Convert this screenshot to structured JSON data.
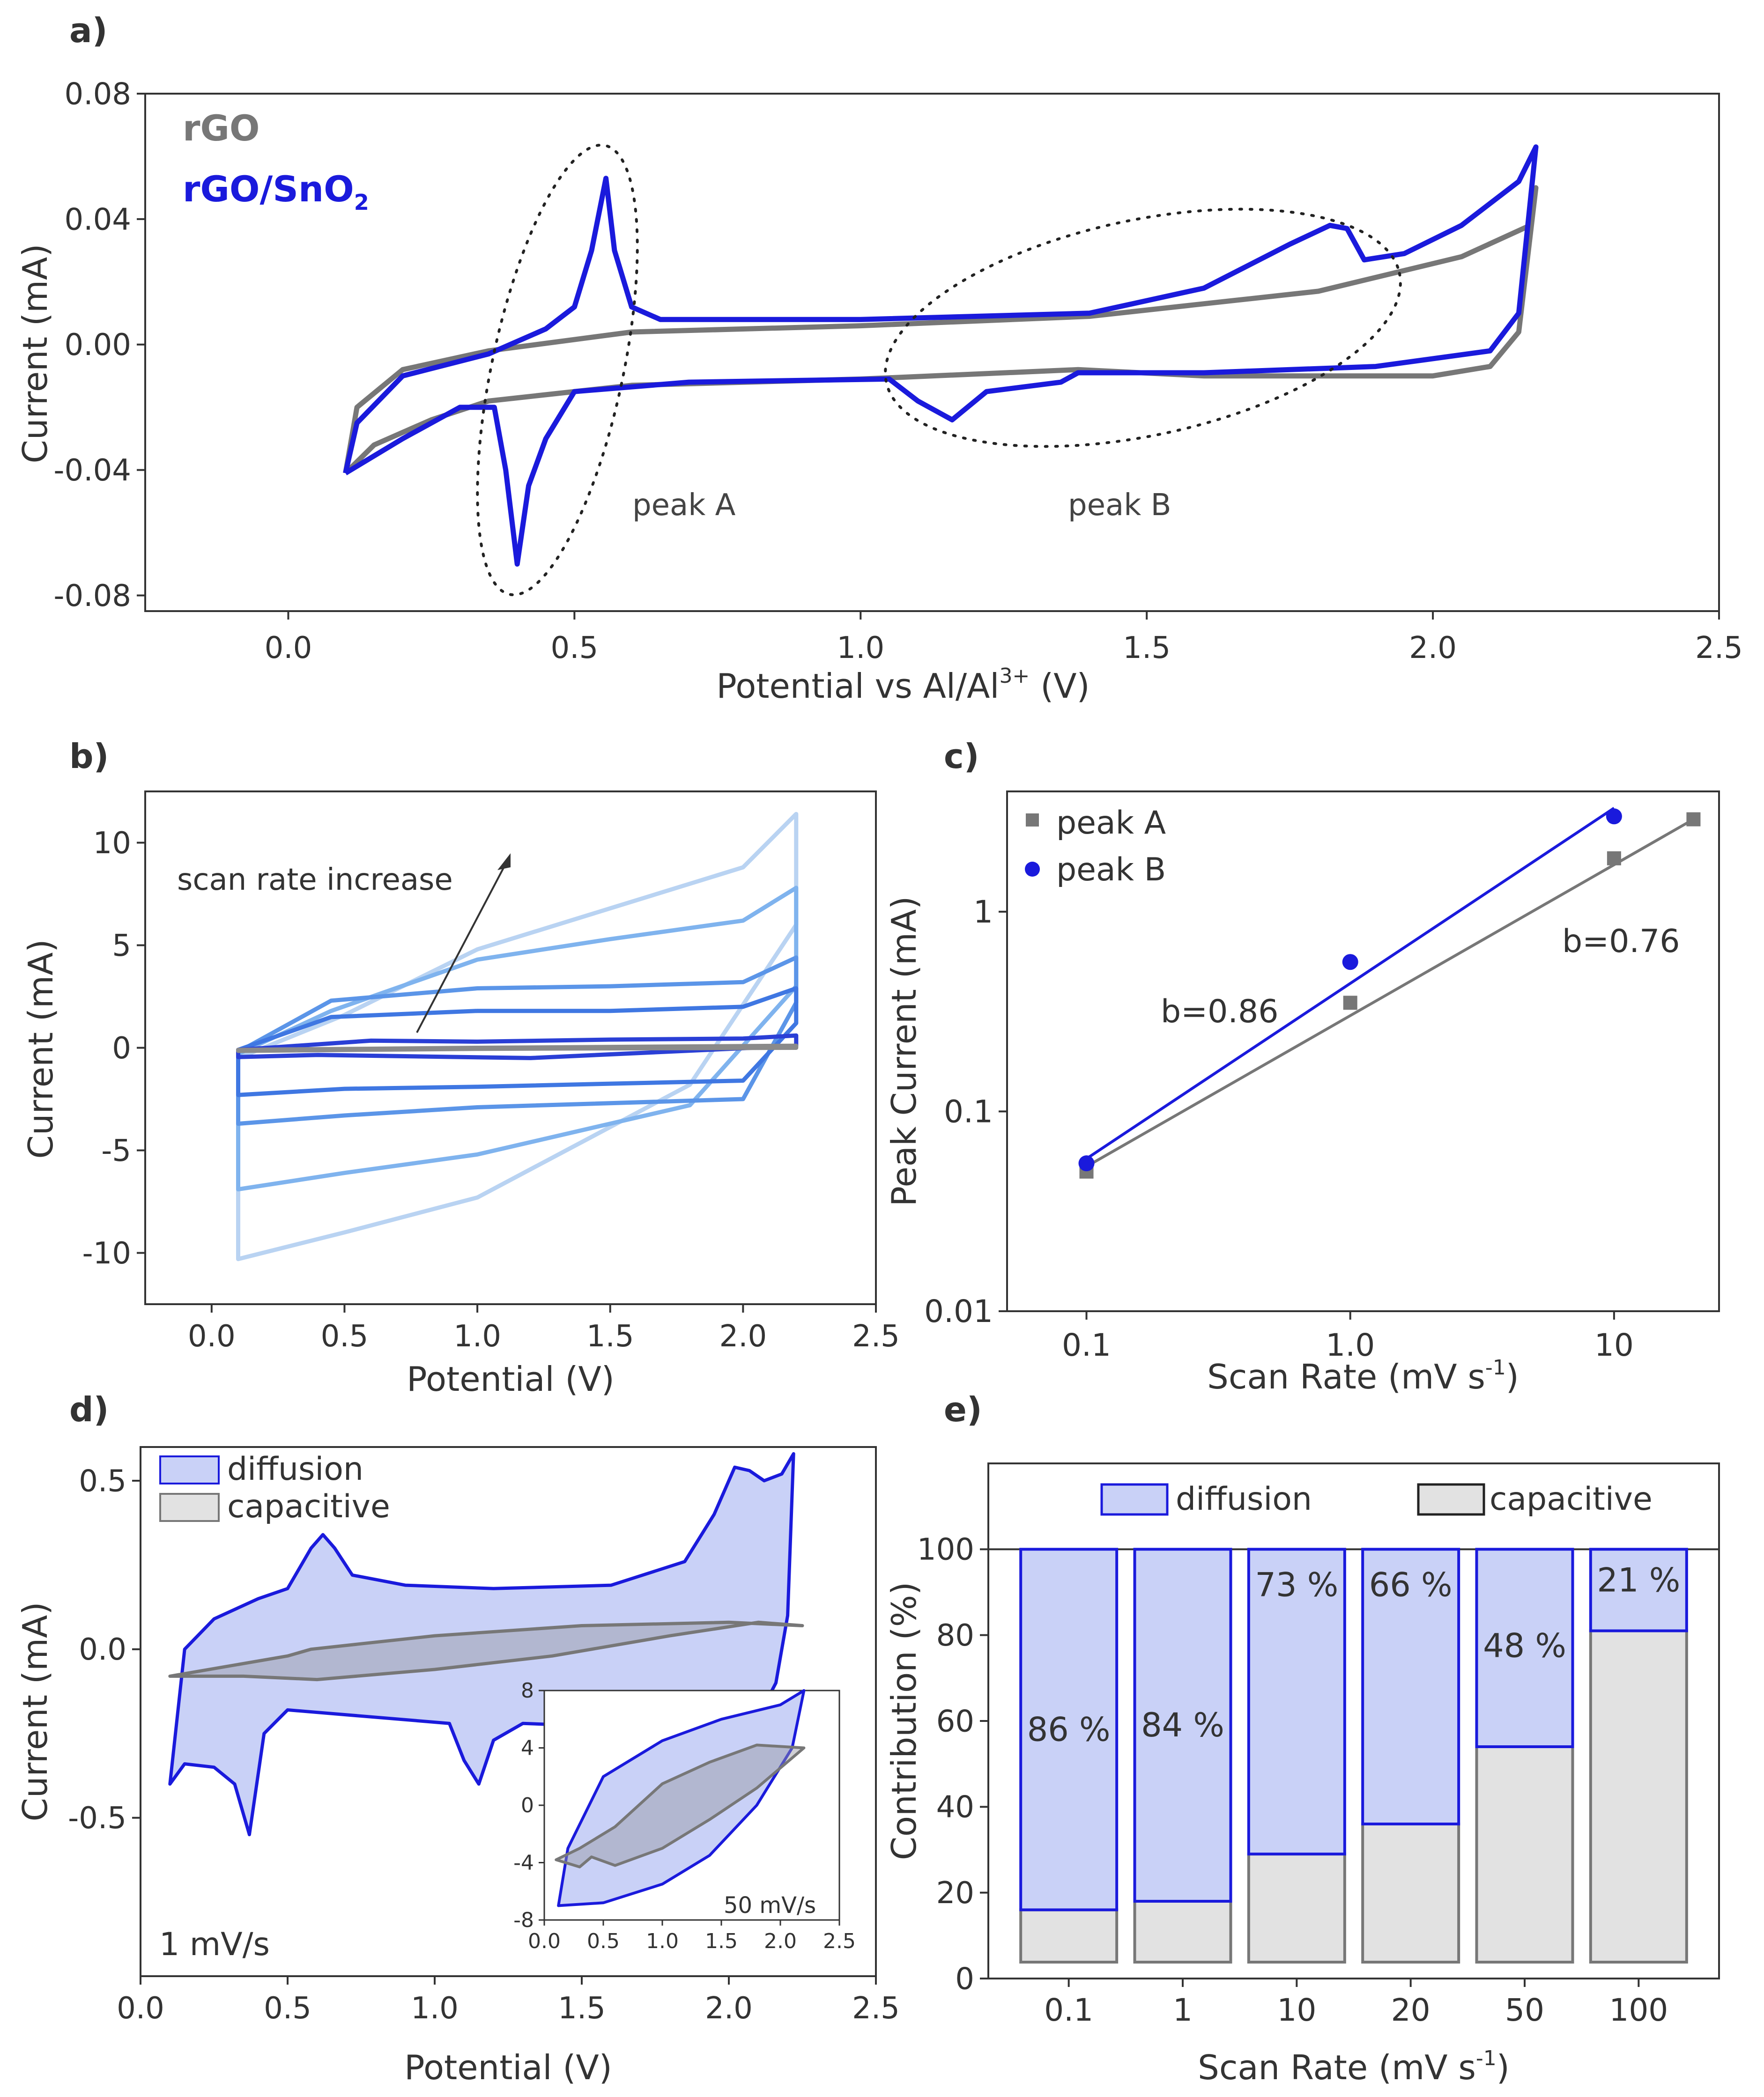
{
  "colors": {
    "rgo": "#777777",
    "rgo_sno2": "#1a1adc",
    "fill_blue": "#c9d1f7",
    "fill_gray": "#e2e2e2",
    "axis": "#333333"
  },
  "chart_data": [
    {
      "panel": "a)",
      "type": "line",
      "xlabel": "Potential vs Al/Al",
      "xlabel_sup": "3+",
      "xlabel_suffix": " (V)",
      "ylabel": "Current (mA)",
      "xlim": [
        -0.25,
        2.5
      ],
      "ylim": [
        -0.085,
        0.08
      ],
      "xticks": [
        "0.0",
        "0.5",
        "1.0",
        "1.5",
        "2.0",
        "2.5"
      ],
      "yticks": [
        "0.08",
        "0.04",
        "0.00",
        "-0.04",
        "-0.08"
      ],
      "legend": [
        {
          "name": "rGO",
          "color": "#777777"
        },
        {
          "name": "rGO/SnO",
          "sub": "2",
          "color": "#1a1adc"
        }
      ],
      "annotations": [
        "peak A",
        "peak B"
      ],
      "series": [
        {
          "name": "rGO",
          "x": [
            0.1,
            0.12,
            0.2,
            0.35,
            0.6,
            1.0,
            1.4,
            1.8,
            2.05,
            2.17,
            2.18,
            2.15,
            2.1,
            2.0,
            1.6,
            1.38,
            1.0,
            0.6,
            0.4,
            0.35,
            0.25,
            0.15,
            0.1
          ],
          "y": [
            -0.041,
            -0.02,
            -0.008,
            -0.002,
            0.004,
            0.006,
            0.009,
            0.017,
            0.028,
            0.038,
            0.05,
            0.004,
            -0.007,
            -0.01,
            -0.01,
            -0.008,
            -0.011,
            -0.013,
            -0.017,
            -0.018,
            -0.024,
            -0.032,
            -0.041
          ]
        },
        {
          "name": "rGO/SnO2",
          "x": [
            0.1,
            0.12,
            0.2,
            0.35,
            0.45,
            0.5,
            0.53,
            0.555,
            0.57,
            0.6,
            0.65,
            1.0,
            1.4,
            1.6,
            1.75,
            1.82,
            1.85,
            1.88,
            1.95,
            2.05,
            2.15,
            2.18,
            2.15,
            2.1,
            1.9,
            1.6,
            1.38,
            1.35,
            1.22,
            1.16,
            1.1,
            1.05,
            0.7,
            0.5,
            0.45,
            0.42,
            0.4,
            0.38,
            0.36,
            0.3,
            0.2,
            0.1
          ],
          "y": [
            -0.041,
            -0.025,
            -0.01,
            -0.003,
            0.005,
            0.012,
            0.03,
            0.053,
            0.03,
            0.012,
            0.008,
            0.008,
            0.01,
            0.018,
            0.032,
            0.038,
            0.037,
            0.027,
            0.029,
            0.038,
            0.052,
            0.063,
            0.01,
            -0.002,
            -0.007,
            -0.009,
            -0.009,
            -0.012,
            -0.015,
            -0.024,
            -0.018,
            -0.011,
            -0.012,
            -0.015,
            -0.03,
            -0.045,
            -0.07,
            -0.04,
            -0.02,
            -0.02,
            -0.03,
            -0.041
          ]
        }
      ]
    },
    {
      "panel": "b)",
      "type": "line",
      "xlabel": "Potential (V)",
      "ylabel": "Current (mA)",
      "xlim": [
        -0.25,
        2.5
      ],
      "ylim": [
        -12.5,
        12.5
      ],
      "xticks": [
        "0.0",
        "0.5",
        "1.0",
        "1.5",
        "2.0",
        "2.5"
      ],
      "yticks": [
        "10",
        "5",
        "0",
        "-5",
        "-10"
      ],
      "annotations": [
        "scan rate increase"
      ],
      "cycles": [
        {
          "color": "#b9d3f2",
          "top": [
            [
              0.1,
              -0.5
            ],
            [
              0.5,
              1.6
            ],
            [
              1.0,
              4.8
            ],
            [
              1.5,
              6.8
            ],
            [
              2.0,
              8.8
            ],
            [
              2.2,
              11.4
            ]
          ],
          "bottom": [
            [
              2.2,
              6.0
            ],
            [
              1.8,
              -1.8
            ],
            [
              1.0,
              -7.3
            ],
            [
              0.5,
              -9.0
            ],
            [
              0.1,
              -10.3
            ]
          ]
        },
        {
          "color": "#7fb3ee",
          "top": [
            [
              0.1,
              -0.3
            ],
            [
              0.45,
              1.8
            ],
            [
              1.0,
              4.3
            ],
            [
              1.5,
              5.3
            ],
            [
              2.0,
              6.2
            ],
            [
              2.2,
              7.8
            ]
          ],
          "bottom": [
            [
              2.2,
              3.0
            ],
            [
              1.8,
              -2.8
            ],
            [
              1.0,
              -5.2
            ],
            [
              0.5,
              -6.1
            ],
            [
              0.1,
              -6.9
            ]
          ]
        },
        {
          "color": "#5b95e8",
          "top": [
            [
              0.1,
              -0.2
            ],
            [
              0.45,
              2.3
            ],
            [
              1.0,
              2.9
            ],
            [
              1.5,
              3.0
            ],
            [
              2.0,
              3.2
            ],
            [
              2.2,
              4.4
            ]
          ],
          "bottom": [
            [
              2.2,
              2.2
            ],
            [
              2.0,
              -2.5
            ],
            [
              1.0,
              -2.9
            ],
            [
              0.5,
              -3.3
            ],
            [
              0.1,
              -3.7
            ]
          ]
        },
        {
          "color": "#3f77e2",
          "top": [
            [
              0.1,
              -0.1
            ],
            [
              0.45,
              1.5
            ],
            [
              1.0,
              1.8
            ],
            [
              1.5,
              1.8
            ],
            [
              2.0,
              2.0
            ],
            [
              2.2,
              2.9
            ]
          ],
          "bottom": [
            [
              2.2,
              1.2
            ],
            [
              2.0,
              -1.6
            ],
            [
              1.0,
              -1.9
            ],
            [
              0.5,
              -2.0
            ],
            [
              0.1,
              -2.3
            ]
          ]
        },
        {
          "color": "#2a3fd6",
          "top": [
            [
              0.1,
              -0.1
            ],
            [
              0.6,
              0.35
            ],
            [
              1.0,
              0.3
            ],
            [
              1.5,
              0.4
            ],
            [
              2.0,
              0.45
            ],
            [
              2.2,
              0.6
            ]
          ],
          "bottom": [
            [
              2.2,
              0.1
            ],
            [
              1.2,
              -0.5
            ],
            [
              0.4,
              -0.35
            ],
            [
              0.1,
              -0.45
            ]
          ]
        },
        {
          "color": "#8a8a8a",
          "top": [
            [
              0.1,
              -0.1
            ],
            [
              1.0,
              0.0
            ],
            [
              2.2,
              0.1
            ]
          ],
          "bottom": [
            [
              2.2,
              0.0
            ],
            [
              1.0,
              -0.05
            ],
            [
              0.1,
              -0.15
            ]
          ]
        }
      ]
    },
    {
      "panel": "c)",
      "type": "scatter",
      "xlabel": "Scan Rate (mV s",
      "xlabel_sup": "-1",
      "xlabel_suffix": ")",
      "ylabel": "Peak Current (mA)",
      "xscale": "log",
      "yscale": "log",
      "xlim": [
        0.05,
        25
      ],
      "ylim": [
        0.01,
        4
      ],
      "xticks": [
        "0.1",
        "1.0",
        "10"
      ],
      "yticks": [
        "1",
        "0.1",
        "0.01"
      ],
      "legend": [
        {
          "name": "peak A",
          "color": "#777777",
          "marker": "square"
        },
        {
          "name": "peak B",
          "color": "#1a1adc",
          "marker": "circle"
        }
      ],
      "annotations": [
        "b=0.86",
        "b=0.76"
      ],
      "series": [
        {
          "name": "peak A",
          "x": [
            0.1,
            1,
            10,
            20
          ],
          "y": [
            0.05,
            0.35,
            1.85,
            2.9
          ],
          "fit": [
            [
              0.1,
              0.053
            ],
            [
              20,
              2.9
            ]
          ]
        },
        {
          "name": "peak B",
          "x": [
            0.1,
            1,
            10
          ],
          "y": [
            0.055,
            0.56,
            3.0
          ],
          "fit": [
            [
              0.1,
              0.058
            ],
            [
              10,
              3.3
            ]
          ]
        }
      ]
    },
    {
      "panel": "d)",
      "type": "area",
      "xlabel": "Potential (V)",
      "ylabel": "Current (mA)",
      "xlim": [
        0.0,
        2.5
      ],
      "ylim": [
        -0.97,
        0.6
      ],
      "xticks": [
        "0.0",
        "0.5",
        "1.0",
        "1.5",
        "2.0",
        "2.5"
      ],
      "yticks": [
        "0.5",
        "0.0",
        "-0.5"
      ],
      "legend": [
        {
          "name": "diffusion",
          "color": "#c9d1f7"
        },
        {
          "name": "capacitive",
          "color": "#e2e2e2"
        }
      ],
      "annotations": [
        "1 mV/s"
      ],
      "diffusion_outline": [
        [
          0.1,
          -0.4
        ],
        [
          0.15,
          0.0
        ],
        [
          0.25,
          0.09
        ],
        [
          0.4,
          0.15
        ],
        [
          0.5,
          0.18
        ],
        [
          0.58,
          0.3
        ],
        [
          0.62,
          0.34
        ],
        [
          0.66,
          0.3
        ],
        [
          0.72,
          0.22
        ],
        [
          0.9,
          0.19
        ],
        [
          1.2,
          0.18
        ],
        [
          1.6,
          0.19
        ],
        [
          1.85,
          0.26
        ],
        [
          1.95,
          0.4
        ],
        [
          2.02,
          0.54
        ],
        [
          2.07,
          0.53
        ],
        [
          2.12,
          0.5
        ],
        [
          2.18,
          0.52
        ],
        [
          2.22,
          0.58
        ],
        [
          2.2,
          0.1
        ],
        [
          2.16,
          -0.1
        ],
        [
          2.1,
          -0.2
        ],
        [
          1.6,
          -0.23
        ],
        [
          1.3,
          -0.22
        ],
        [
          1.2,
          -0.27
        ],
        [
          1.15,
          -0.4
        ],
        [
          1.1,
          -0.33
        ],
        [
          1.05,
          -0.22
        ],
        [
          0.5,
          -0.18
        ],
        [
          0.42,
          -0.25
        ],
        [
          0.37,
          -0.55
        ],
        [
          0.32,
          -0.4
        ],
        [
          0.25,
          -0.35
        ],
        [
          0.15,
          -0.34
        ],
        [
          0.1,
          -0.4
        ]
      ],
      "capacitive_outline": [
        [
          0.1,
          -0.08
        ],
        [
          0.5,
          -0.02
        ],
        [
          0.58,
          0.0
        ],
        [
          1.0,
          0.04
        ],
        [
          1.5,
          0.07
        ],
        [
          2.0,
          0.08
        ],
        [
          2.25,
          0.07
        ],
        [
          2.1,
          0.08
        ],
        [
          1.8,
          0.04
        ],
        [
          1.4,
          -0.02
        ],
        [
          1.0,
          -0.06
        ],
        [
          0.6,
          -0.09
        ],
        [
          0.35,
          -0.08
        ],
        [
          0.2,
          -0.08
        ],
        [
          0.1,
          -0.08
        ]
      ],
      "inset": {
        "annotation": "50 mV/s",
        "xlim": [
          0.0,
          2.5
        ],
        "ylim": [
          -8,
          8
        ],
        "xticks": [
          "0.0",
          "0.5",
          "1.0",
          "1.5",
          "2.0",
          "2.5"
        ],
        "yticks": [
          "8",
          "4",
          "0",
          "-4",
          "-8"
        ],
        "diffusion_outline": [
          [
            0.12,
            -7.0
          ],
          [
            0.2,
            -3.0
          ],
          [
            0.5,
            2.0
          ],
          [
            1.0,
            4.5
          ],
          [
            1.5,
            6.0
          ],
          [
            2.0,
            7.0
          ],
          [
            2.2,
            8.0
          ],
          [
            2.1,
            4.0
          ],
          [
            1.8,
            0.0
          ],
          [
            1.4,
            -3.5
          ],
          [
            1.0,
            -5.5
          ],
          [
            0.5,
            -6.8
          ],
          [
            0.12,
            -7.0
          ]
        ],
        "capacitive_outline": [
          [
            0.1,
            -3.8
          ],
          [
            0.3,
            -3.0
          ],
          [
            0.6,
            -1.5
          ],
          [
            1.0,
            1.5
          ],
          [
            1.4,
            3.0
          ],
          [
            1.8,
            4.2
          ],
          [
            2.2,
            4.0
          ],
          [
            1.8,
            1.2
          ],
          [
            1.4,
            -1.0
          ],
          [
            1.0,
            -3.0
          ],
          [
            0.6,
            -4.2
          ],
          [
            0.4,
            -3.6
          ],
          [
            0.3,
            -4.3
          ],
          [
            0.1,
            -3.8
          ]
        ]
      }
    },
    {
      "panel": "e)",
      "type": "bar",
      "stacked": true,
      "xlabel": "Scan Rate (mV s",
      "xlabel_sup": "-1",
      "xlabel_suffix": ")",
      "ylabel": "Contribution (%)",
      "ylim": [
        0,
        120
      ],
      "yticks": [
        "100",
        "80",
        "60",
        "40",
        "20",
        "0"
      ],
      "categories": [
        "0.1",
        "1",
        "10",
        "20",
        "50",
        "100"
      ],
      "legend": [
        {
          "name": "diffusion",
          "color": "#c9d1f7"
        },
        {
          "name": "capacitive",
          "color": "#e2e2e2"
        }
      ],
      "series": [
        {
          "name": "capacitive",
          "values": [
            14,
            16,
            27,
            34,
            52,
            79
          ]
        },
        {
          "name": "diffusion",
          "values": [
            86,
            84,
            73,
            66,
            48,
            21
          ]
        }
      ],
      "data_labels": [
        "86 %",
        "84 %",
        "73 %",
        "66 %",
        "48 %",
        "21 %"
      ]
    }
  ]
}
